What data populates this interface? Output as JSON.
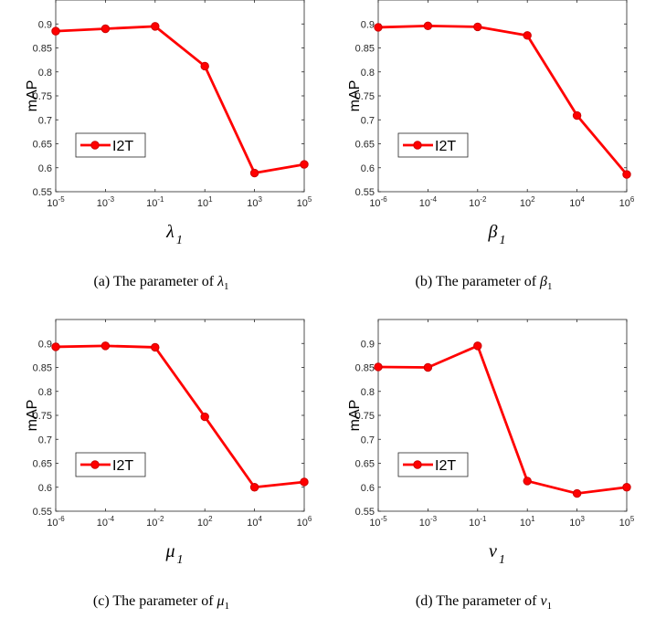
{
  "style": {
    "line_color": "#ff0000",
    "marker_edge": "#cc0000",
    "axis_color": "#262626"
  },
  "chart_data": [
    {
      "type": "line",
      "caption": {
        "prefix": "(a)  The parameter of ",
        "symbol": "λ",
        "subscript": "1"
      },
      "ylabel": "mAP",
      "xlabel": {
        "symbol": "λ",
        "subscript": "1"
      },
      "xticks": [
        {
          "base": "10",
          "exp": "-5"
        },
        {
          "base": "10",
          "exp": "-3"
        },
        {
          "base": "10",
          "exp": "-1"
        },
        {
          "base": "10",
          "exp": "1"
        },
        {
          "base": "10",
          "exp": "3"
        },
        {
          "base": "10",
          "exp": "5"
        }
      ],
      "yticks": [
        "0.55",
        "0.6",
        "0.65",
        "0.7",
        "0.75",
        "0.8",
        "0.85",
        "0.9"
      ],
      "ylim": [
        0.55,
        0.95
      ],
      "series": [
        {
          "name": "I2T",
          "values": [
            0.885,
            0.89,
            0.895,
            0.812,
            0.589,
            0.607
          ]
        }
      ],
      "legend_position": "lower-left",
      "grid": false
    },
    {
      "type": "line",
      "caption": {
        "prefix": "(b)  The parameter of ",
        "symbol": "β",
        "subscript": "1"
      },
      "ylabel": "mAP",
      "xlabel": {
        "symbol": "β",
        "subscript": "1"
      },
      "xticks": [
        {
          "base": "10",
          "exp": "-6"
        },
        {
          "base": "10",
          "exp": "-4"
        },
        {
          "base": "10",
          "exp": "-2"
        },
        {
          "base": "10",
          "exp": "2"
        },
        {
          "base": "10",
          "exp": "4"
        },
        {
          "base": "10",
          "exp": "6"
        }
      ],
      "yticks": [
        "0.55",
        "0.6",
        "0.65",
        "0.7",
        "0.75",
        "0.8",
        "0.85",
        "0.9"
      ],
      "ylim": [
        0.55,
        0.95
      ],
      "series": [
        {
          "name": "I2T",
          "values": [
            0.893,
            0.896,
            0.894,
            0.876,
            0.709,
            0.586
          ]
        }
      ],
      "legend_position": "lower-left",
      "grid": false
    },
    {
      "type": "line",
      "caption": {
        "prefix": "(c)  The parameter of ",
        "symbol": "μ",
        "subscript": "1"
      },
      "ylabel": "mAP",
      "xlabel": {
        "symbol": "μ",
        "subscript": "1"
      },
      "xticks": [
        {
          "base": "10",
          "exp": "-6"
        },
        {
          "base": "10",
          "exp": "-4"
        },
        {
          "base": "10",
          "exp": "-2"
        },
        {
          "base": "10",
          "exp": "2"
        },
        {
          "base": "10",
          "exp": "4"
        },
        {
          "base": "10",
          "exp": "6"
        }
      ],
      "yticks": [
        "0.55",
        "0.6",
        "0.65",
        "0.7",
        "0.75",
        "0.8",
        "0.85",
        "0.9"
      ],
      "ylim": [
        0.55,
        0.95
      ],
      "series": [
        {
          "name": "I2T",
          "values": [
            0.893,
            0.895,
            0.892,
            0.747,
            0.6,
            0.611
          ]
        }
      ],
      "legend_position": "lower-left",
      "grid": false
    },
    {
      "type": "line",
      "caption": {
        "prefix": "(d)  The parameter of ",
        "symbol": "ν",
        "subscript": "1"
      },
      "ylabel": "mAP",
      "xlabel": {
        "symbol": "ν",
        "subscript": "1"
      },
      "xticks": [
        {
          "base": "10",
          "exp": "-5"
        },
        {
          "base": "10",
          "exp": "-3"
        },
        {
          "base": "10",
          "exp": "-1"
        },
        {
          "base": "10",
          "exp": "1"
        },
        {
          "base": "10",
          "exp": "3"
        },
        {
          "base": "10",
          "exp": "5"
        }
      ],
      "yticks": [
        "0.55",
        "0.6",
        "0.65",
        "0.7",
        "0.75",
        "0.8",
        "0.85",
        "0.9"
      ],
      "ylim": [
        0.55,
        0.95
      ],
      "series": [
        {
          "name": "I2T",
          "values": [
            0.851,
            0.85,
            0.895,
            0.613,
            0.587,
            0.6
          ]
        }
      ],
      "legend_position": "lower-left",
      "grid": false
    }
  ]
}
